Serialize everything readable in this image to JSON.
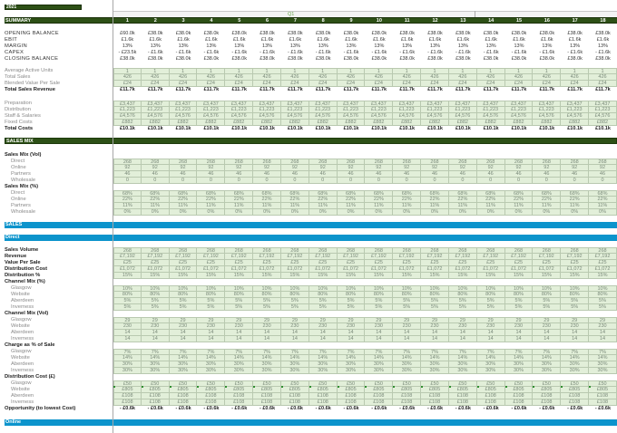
{
  "year_label": "2021",
  "quarter_label": "Q1",
  "summary": {
    "title": "SUMMARY",
    "months": [
      "1",
      "2",
      "3",
      "4",
      "5",
      "6",
      "7",
      "8",
      "9",
      "10",
      "11",
      "12",
      "13",
      "14",
      "15",
      "16",
      "17",
      "18"
    ],
    "rows": [
      {
        "label": "OPENING BALANCE",
        "values": [
          "£60.0k",
          "£38.0k",
          "£38.0k",
          "£38.0k",
          "£38.0k",
          "£38.0k",
          "£38.0k",
          "£38.0k",
          "£38.0k",
          "£38.0k",
          "£38.0k",
          "£38.0k",
          "£38.0k",
          "£38.0k",
          "£38.0k",
          "£38.0k",
          "£38.0k",
          "£38.0k"
        ]
      },
      {
        "label": "EBIT",
        "values": [
          "£1.6k",
          "£1.6k",
          "£1.6k",
          "£1.6k",
          "£1.6k",
          "£1.6k",
          "£1.6k",
          "£1.6k",
          "£1.6k",
          "£1.6k",
          "£1.6k",
          "£1.6k",
          "£1.6k",
          "£1.6k",
          "£1.6k",
          "£1.6k",
          "£1.6k",
          "£1.6k"
        ]
      },
      {
        "label": "MARGIN",
        "values": [
          "13%",
          "13%",
          "13%",
          "13%",
          "13%",
          "13%",
          "13%",
          "13%",
          "13%",
          "13%",
          "13%",
          "13%",
          "13%",
          "13%",
          "13%",
          "13%",
          "13%",
          "13%"
        ]
      },
      {
        "label": "CAPEX",
        "values": [
          "- £23.5k",
          "- £1.6k",
          "- £1.6k",
          "- £1.6k",
          "- £1.6k",
          "- £1.6k",
          "- £1.6k",
          "- £1.6k",
          "- £1.6k",
          "- £1.6k",
          "- £1.6k",
          "- £1.6k",
          "- £1.6k",
          "- £1.6k",
          "- £1.6k",
          "- £1.6k",
          "- £1.6k",
          "- £1.6k"
        ]
      },
      {
        "label": "CLOSING BALANCE",
        "values": [
          "£38.0k",
          "£38.0k",
          "£38.0k",
          "£38.0k",
          "£38.0k",
          "£38.0k",
          "£38.0k",
          "£38.0k",
          "£38.0k",
          "£38.0k",
          "£38.0k",
          "£38.0k",
          "£38.0k",
          "£38.0k",
          "£38.0k",
          "£38.0k",
          "£38.0k",
          "£38.0k"
        ]
      }
    ],
    "sales_rows": [
      {
        "label": "Average Active Units",
        "values": [
          "1",
          "1",
          "1",
          "1",
          "1",
          "1",
          "1",
          "1",
          "1",
          "1",
          "1",
          "1",
          "1",
          "1",
          "1",
          "1",
          "1",
          "1"
        ]
      },
      {
        "label": "Total Sales",
        "values": [
          "426",
          "426",
          "426",
          "426",
          "426",
          "426",
          "426",
          "426",
          "426",
          "426",
          "426",
          "426",
          "426",
          "426",
          "426",
          "426",
          "426",
          "426"
        ]
      },
      {
        "label": "Blended Value Per Sale",
        "values": [
          "£24",
          "£24",
          "£24",
          "£24",
          "£24",
          "£24",
          "£24",
          "£24",
          "£24",
          "£24",
          "£24",
          "£24",
          "£24",
          "£24",
          "£24",
          "£24",
          "£24",
          "£24"
        ]
      }
    ],
    "total_sales_revenue": {
      "label": "Total Sales Revenue",
      "values": [
        "£11.7k",
        "£11.7k",
        "£11.7k",
        "£11.7k",
        "£11.7k",
        "£11.7k",
        "£11.7k",
        "£11.7k",
        "£11.7k",
        "£11.7k",
        "£11.7k",
        "£11.7k",
        "£11.7k",
        "£11.7k",
        "£11.7k",
        "£11.7k",
        "£11.7k",
        "£11.7k"
      ]
    },
    "cost_rows": [
      {
        "label": "Preparation",
        "values": [
          "£3,437",
          "£3,437",
          "£3,437",
          "£3,437",
          "£3,437",
          "£3,437",
          "£3,437",
          "£3,437",
          "£3,437",
          "£3,437",
          "£3,437",
          "£3,437",
          "£3,437",
          "£3,437",
          "£3,437",
          "£3,437",
          "£3,437",
          "£3,437"
        ]
      },
      {
        "label": "Distribution",
        "values": [
          "£1,223",
          "£1,223",
          "£1,223",
          "£1,223",
          "£1,223",
          "£1,223",
          "£1,223",
          "£1,223",
          "£1,223",
          "£1,223",
          "£1,223",
          "£1,223",
          "£1,223",
          "£1,223",
          "£1,223",
          "£1,223",
          "£1,223",
          "£1,223"
        ]
      },
      {
        "label": "Staff & Salaries",
        "values": [
          "£4,576",
          "£4,576",
          "£4,576",
          "£4,576",
          "£4,576",
          "£4,576",
          "£4,576",
          "£4,576",
          "£4,576",
          "£4,576",
          "£4,576",
          "£4,576",
          "£4,576",
          "£4,576",
          "£4,576",
          "£4,576",
          "£4,576",
          "£4,576"
        ]
      },
      {
        "label": "Fixed Costs",
        "values": [
          "£882",
          "£882",
          "£882",
          "£882",
          "£882",
          "£882",
          "£882",
          "£882",
          "£882",
          "£882",
          "£882",
          "£882",
          "£882",
          "£882",
          "£882",
          "£882",
          "£882",
          "£882"
        ]
      }
    ],
    "total_costs": {
      "label": "Total Costs",
      "values": [
        "£10.1k",
        "£10.1k",
        "£10.1k",
        "£10.1k",
        "£10.1k",
        "£10.1k",
        "£10.1k",
        "£10.1k",
        "£10.1k",
        "£10.1k",
        "£10.1k",
        "£10.1k",
        "£10.1k",
        "£10.1k",
        "£10.1k",
        "£10.1k",
        "£10.1k",
        "£10.1k"
      ]
    }
  },
  "sales_mix": {
    "title": "SALES MIX",
    "vol_heading": "Sales Mix (Vol)",
    "vol_rows": [
      {
        "label": "Direct",
        "values": [
          "268",
          "268",
          "268",
          "268",
          "268",
          "268",
          "268",
          "268",
          "268",
          "268",
          "268",
          "268",
          "268",
          "268",
          "268",
          "268",
          "268",
          "268"
        ]
      },
      {
        "label": "Online",
        "values": [
          "92",
          "92",
          "92",
          "92",
          "92",
          "92",
          "92",
          "92",
          "92",
          "92",
          "92",
          "92",
          "92",
          "92",
          "92",
          "92",
          "92",
          "92"
        ]
      },
      {
        "label": "Partners",
        "values": [
          "46",
          "46",
          "46",
          "46",
          "46",
          "46",
          "46",
          "46",
          "46",
          "46",
          "46",
          "46",
          "46",
          "46",
          "46",
          "46",
          "46",
          "46"
        ]
      },
      {
        "label": "Wholesale",
        "values": [
          "0",
          "0",
          "0",
          "0",
          "0",
          "0",
          "0",
          "0",
          "0",
          "0",
          "0",
          "0",
          "0",
          "0",
          "0",
          "0",
          "0",
          "0"
        ]
      }
    ],
    "pct_heading": "Sales Mix (%)",
    "pct_rows": [
      {
        "label": "Direct",
        "values": [
          "68%",
          "68%",
          "68%",
          "68%",
          "68%",
          "68%",
          "68%",
          "68%",
          "68%",
          "68%",
          "68%",
          "68%",
          "68%",
          "68%",
          "68%",
          "68%",
          "68%",
          "68%"
        ]
      },
      {
        "label": "Online",
        "values": [
          "22%",
          "22%",
          "22%",
          "22%",
          "22%",
          "22%",
          "22%",
          "22%",
          "22%",
          "22%",
          "22%",
          "22%",
          "22%",
          "22%",
          "22%",
          "22%",
          "22%",
          "22%"
        ]
      },
      {
        "label": "Partners",
        "values": [
          "11%",
          "11%",
          "11%",
          "11%",
          "11%",
          "11%",
          "11%",
          "11%",
          "11%",
          "11%",
          "11%",
          "11%",
          "11%",
          "11%",
          "11%",
          "11%",
          "11%",
          "11%"
        ]
      },
      {
        "label": "Wholesale",
        "values": [
          "0%",
          "0%",
          "0%",
          "0%",
          "0%",
          "0%",
          "0%",
          "0%",
          "0%",
          "0%",
          "0%",
          "0%",
          "0%",
          "0%",
          "0%",
          "0%",
          "0%",
          "0%"
        ]
      }
    ]
  },
  "sales": {
    "title": "SALES",
    "direct": {
      "title": "Direct",
      "main_rows": [
        {
          "label": "Sales Volume",
          "values": [
            "268",
            "268",
            "268",
            "268",
            "268",
            "268",
            "268",
            "268",
            "268",
            "268",
            "268",
            "268",
            "268",
            "268",
            "268",
            "268",
            "268",
            "268"
          ]
        },
        {
          "label": "Revenue",
          "values": [
            "£7,192",
            "£7,192",
            "£7,192",
            "£7,192",
            "£7,192",
            "£7,192",
            "£7,192",
            "£7,192",
            "£7,192",
            "£7,192",
            "£7,192",
            "£7,192",
            "£7,192",
            "£7,192",
            "£7,192",
            "£7,192",
            "£7,192",
            "£7,192"
          ]
        },
        {
          "label": "Value Per Sale",
          "values": [
            "£25",
            "£25",
            "£25",
            "£25",
            "£25",
            "£25",
            "£25",
            "£25",
            "£25",
            "£25",
            "£25",
            "£25",
            "£25",
            "£25",
            "£25",
            "£25",
            "£25",
            "£25"
          ]
        },
        {
          "label": "Distribution Cost",
          "values": [
            "£1,072",
            "£1,072",
            "£1,072",
            "£1,072",
            "£1,072",
            "£1,072",
            "£1,072",
            "£1,072",
            "£1,072",
            "£1,072",
            "£1,072",
            "£1,072",
            "£1,072",
            "£1,072",
            "£1,072",
            "£1,072",
            "£1,072",
            "£1,072"
          ]
        },
        {
          "label": "Distribution %",
          "values": [
            "15%",
            "15%",
            "15%",
            "15%",
            "15%",
            "15%",
            "15%",
            "15%",
            "15%",
            "15%",
            "15%",
            "15%",
            "15%",
            "15%",
            "15%",
            "15%",
            "15%",
            "15%"
          ]
        }
      ],
      "channel_mix_pct_heading": "Channel Mix (%)",
      "channel_mix_pct": [
        {
          "label": "Glasgow",
          "values": [
            "10%",
            "10%",
            "10%",
            "10%",
            "10%",
            "10%",
            "10%",
            "10%",
            "10%",
            "10%",
            "10%",
            "10%",
            "10%",
            "10%",
            "10%",
            "10%",
            "10%",
            "10%"
          ]
        },
        {
          "label": "Website",
          "values": [
            "80%",
            "80%",
            "80%",
            "80%",
            "80%",
            "80%",
            "80%",
            "80%",
            "80%",
            "80%",
            "80%",
            "80%",
            "80%",
            "80%",
            "80%",
            "80%",
            "80%",
            "80%"
          ]
        },
        {
          "label": "Aberdeen",
          "values": [
            "5%",
            "5%",
            "5%",
            "5%",
            "5%",
            "5%",
            "5%",
            "5%",
            "5%",
            "5%",
            "5%",
            "5%",
            "5%",
            "5%",
            "5%",
            "5%",
            "5%",
            "5%"
          ]
        },
        {
          "label": "Inverness",
          "values": [
            "5%",
            "5%",
            "5%",
            "5%",
            "5%",
            "5%",
            "5%",
            "5%",
            "5%",
            "5%",
            "5%",
            "5%",
            "5%",
            "5%",
            "5%",
            "5%",
            "5%",
            "5%"
          ]
        }
      ],
      "channel_mix_vol_heading": "Channel Mix (Vol)",
      "channel_mix_vol": [
        {
          "label": "Glasgow",
          "values": [
            "29",
            "29",
            "29",
            "29",
            "29",
            "29",
            "29",
            "29",
            "29",
            "29",
            "29",
            "29",
            "29",
            "29",
            "29",
            "29",
            "29",
            "29"
          ]
        },
        {
          "label": "Website",
          "values": [
            "230",
            "230",
            "230",
            "230",
            "230",
            "230",
            "230",
            "230",
            "230",
            "230",
            "230",
            "230",
            "230",
            "230",
            "230",
            "230",
            "230",
            "230"
          ]
        },
        {
          "label": "Aberdeen",
          "values": [
            "14",
            "14",
            "14",
            "14",
            "14",
            "14",
            "14",
            "14",
            "14",
            "14",
            "14",
            "14",
            "14",
            "14",
            "14",
            "14",
            "14",
            "14"
          ]
        },
        {
          "label": "Inverness",
          "values": [
            "14",
            "14",
            "14",
            "14",
            "14",
            "14",
            "14",
            "14",
            "14",
            "14",
            "14",
            "14",
            "14",
            "14",
            "14",
            "14",
            "14",
            "14"
          ]
        }
      ],
      "charge_heading": "Charge as % of Sale",
      "charge_pct": [
        {
          "label": "Glasgow",
          "values": [
            "7%",
            "7%",
            "7%",
            "7%",
            "7%",
            "7%",
            "7%",
            "7%",
            "7%",
            "7%",
            "7%",
            "7%",
            "7%",
            "7%",
            "7%",
            "7%",
            "7%",
            "7%"
          ]
        },
        {
          "label": "Website",
          "values": [
            "14%",
            "14%",
            "14%",
            "14%",
            "14%",
            "14%",
            "14%",
            "14%",
            "14%",
            "14%",
            "14%",
            "14%",
            "14%",
            "14%",
            "14%",
            "14%",
            "14%",
            "14%"
          ]
        },
        {
          "label": "Aberdeen",
          "values": [
            "30%",
            "30%",
            "30%",
            "30%",
            "30%",
            "30%",
            "30%",
            "30%",
            "30%",
            "30%",
            "30%",
            "30%",
            "30%",
            "30%",
            "30%",
            "30%",
            "30%",
            "30%"
          ]
        },
        {
          "label": "Inverness",
          "values": [
            "30%",
            "30%",
            "30%",
            "30%",
            "30%",
            "30%",
            "30%",
            "30%",
            "30%",
            "30%",
            "30%",
            "30%",
            "30%",
            "30%",
            "30%",
            "30%",
            "30%",
            "30%"
          ]
        }
      ],
      "dist_cost_heading": "Distribution Cost (£)",
      "dist_cost": [
        {
          "label": "Glasgow",
          "values": [
            "£50",
            "£50",
            "£50",
            "£50",
            "£50",
            "£50",
            "£50",
            "£50",
            "£50",
            "£50",
            "£50",
            "£50",
            "£50",
            "£50",
            "£50",
            "£50",
            "£50",
            "£50"
          ]
        },
        {
          "label": "Website",
          "values": [
            "£805",
            "£805",
            "£805",
            "£805",
            "£805",
            "£805",
            "£805",
            "£805",
            "£805",
            "£805",
            "£805",
            "£805",
            "£805",
            "£805",
            "£805",
            "£805",
            "£805",
            "£805"
          ]
        },
        {
          "label": "Aberdeen",
          "values": [
            "£108",
            "£108",
            "£108",
            "£108",
            "£108",
            "£108",
            "£108",
            "£108",
            "£108",
            "£108",
            "£108",
            "£108",
            "£108",
            "£108",
            "£108",
            "£108",
            "£108",
            "£108"
          ]
        },
        {
          "label": "Inverness",
          "values": [
            "£108",
            "£108",
            "£108",
            "£108",
            "£108",
            "£108",
            "£108",
            "£108",
            "£108",
            "£108",
            "£108",
            "£108",
            "£108",
            "£108",
            "£108",
            "£108",
            "£108",
            "£108"
          ]
        }
      ],
      "opportunity": {
        "label": "Opportunity (to lowest Cost)",
        "values": [
          "- £0.6k",
          "- £0.6k",
          "- £0.6k",
          "- £0.6k",
          "- £0.6k",
          "- £0.6k",
          "- £0.6k",
          "- £0.6k",
          "- £0.6k",
          "- £0.6k",
          "- £0.6k",
          "- £0.6k",
          "- £0.6k",
          "- £0.6k",
          "- £0.6k",
          "- £0.6k",
          "- £0.6k",
          "- £0.6k"
        ]
      }
    },
    "online_title": "Online"
  },
  "colors": {
    "section_green": "#2d5016",
    "section_blue": "#0c94cc",
    "input_cell": "#e2efd9",
    "quarter_label": "#6aa84f"
  }
}
